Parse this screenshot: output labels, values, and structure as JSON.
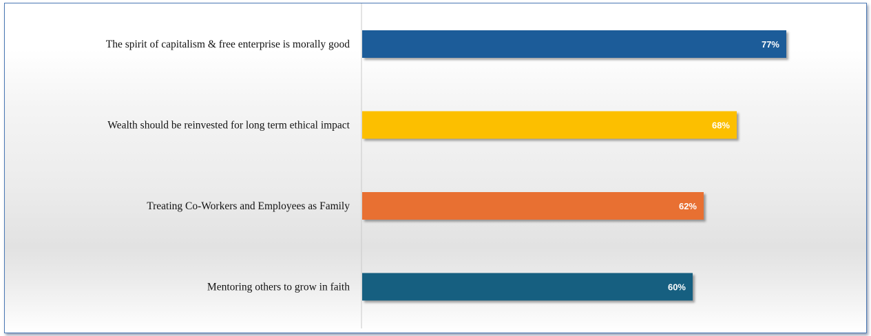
{
  "chart_data": {
    "type": "bar",
    "orientation": "horizontal",
    "categories": [
      "The spirit of capitalism & free enterprise is morally good",
      "Wealth should be reinvested for long term ethical impact",
      "Treating Co-Workers and Employees as Family",
      "Mentoring others to grow in faith"
    ],
    "values": [
      77,
      68,
      62,
      60
    ],
    "value_labels": [
      "77%",
      "68%",
      "62%",
      "60%"
    ],
    "colors": [
      "#1f5c99",
      "#fcbf00",
      "#e87033",
      "#185f80"
    ],
    "xlim": [
      0,
      100
    ],
    "grid": false,
    "legend": "none"
  }
}
